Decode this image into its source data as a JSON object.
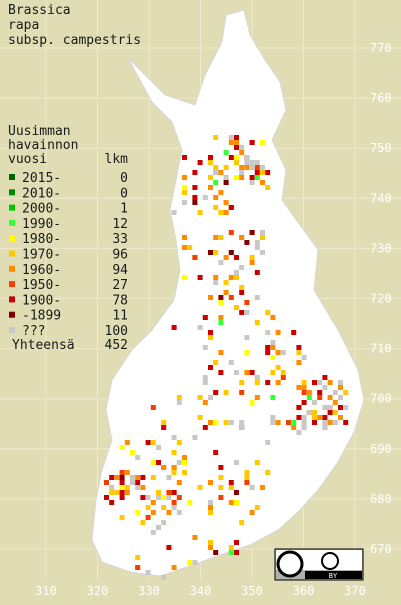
{
  "title": [
    "Brassica",
    "rapa",
    "subsp. campestris"
  ],
  "legend": {
    "header": [
      "Uusimman",
      "havainnon",
      "vuosi"
    ],
    "count_header": "lkm",
    "rows": [
      {
        "label": "2015-",
        "count": 0,
        "color": "#006400"
      },
      {
        "label": "2010-",
        "count": 0,
        "color": "#008a00"
      },
      {
        "label": "2000-",
        "count": 1,
        "color": "#00c800"
      },
      {
        "label": "1990-",
        "count": 12,
        "color": "#33ff33"
      },
      {
        "label": "1980-",
        "count": 33,
        "color": "#ffff00"
      },
      {
        "label": "1970-",
        "count": 96,
        "color": "#ffc800"
      },
      {
        "label": "1960-",
        "count": 94,
        "color": "#ff8c00"
      },
      {
        "label": "1950-",
        "count": 27,
        "color": "#f04000"
      },
      {
        "label": "1900-",
        "count": 78,
        "color": "#c80000"
      },
      {
        "label": "-1899",
        "count": 11,
        "color": "#800000"
      },
      {
        "label": "???",
        "count": 100,
        "color": "#c8c8c8"
      }
    ],
    "total_label": "Yhteensä",
    "total": 452
  },
  "y_labels": [
    770,
    760,
    750,
    740,
    730,
    720,
    710,
    700,
    690,
    680,
    670
  ],
  "x_labels": [
    310,
    320,
    330,
    340,
    350,
    360,
    370
  ],
  "license": "BY"
}
